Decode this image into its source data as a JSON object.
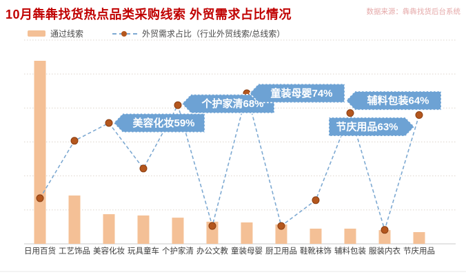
{
  "header": {
    "title": "10月犇犇找货热点品类采购线索 外贸需求占比情况",
    "source": "数据来源：犇犇找货后台系统"
  },
  "legend": [
    {
      "label": "通过线索",
      "type": "bar"
    },
    {
      "label": "外贸需求占比（行业外贸线索/总线索）",
      "type": "line"
    }
  ],
  "chart_data": {
    "type": "combo-bar-line",
    "categories": [
      "日用百货",
      "工艺饰品",
      "美容化妆",
      "玩具童车",
      "个护家清",
      "办公文教",
      "童装母婴",
      "厨卫用品",
      "鞋靴袜饰",
      "辅料包装",
      "服装内衣",
      "节庆用品"
    ],
    "series": [
      {
        "name": "通过线索",
        "type": "bar",
        "unit": "relative-index (no numeric axis shown, estimated, max=100)",
        "values": [
          100,
          26.4,
          16.2,
          15.5,
          14.3,
          12.1,
          11.7,
          10.6,
          8.3,
          8.3,
          7.5,
          6.4
        ]
      },
      {
        "name": "外贸需求占比",
        "type": "line",
        "unit": "%",
        "values": [
          21,
          50,
          59,
          36,
          68,
          7,
          74,
          7,
          20,
          64,
          5,
          63
        ],
        "labeled_points": {
          "美容化妆": 59,
          "个护家清": 68,
          "童装母婴": 74,
          "辅料包装": 64,
          "节庆用品": 63
        }
      }
    ],
    "annotations": [
      {
        "category": "美容化妆",
        "text": "美容化妆59%",
        "arrow": "left"
      },
      {
        "category": "个护家清",
        "text": "个护家清68%",
        "arrow": "left"
      },
      {
        "category": "童装母婴",
        "text": "童装母婴74%",
        "arrow": "left"
      },
      {
        "category": "辅料包装",
        "text": "辅料包装64%",
        "arrow": "left"
      },
      {
        "category": "节庆用品",
        "text": "节庆用品63%",
        "arrow": "right"
      }
    ],
    "colors": {
      "bar": "#f4c096",
      "line": "#7da9d2",
      "dot": "#b4571e",
      "dot_border": "#8a3d10",
      "callout_fill": "#6da2d4",
      "callout_border": "#ffffff",
      "callout_text": "#ffffff",
      "title": "#c00000",
      "source": "#e5a9a9",
      "axis_label": "#3d3d3d",
      "gridline": "#ddd4cc",
      "baseline": "#c9c9c9"
    },
    "layout_hints": {
      "gridlines": "horizontal dotted, 6 intervals",
      "legend_position": "top-left",
      "value_axes_visible": false
    }
  }
}
